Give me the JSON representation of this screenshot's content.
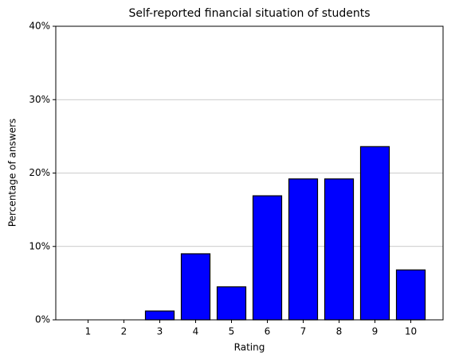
{
  "chart_data": {
    "type": "bar",
    "title": "Self-reported financial situation of students",
    "x_label": "Rating",
    "y_label": "Percentage of answers",
    "categories": [
      "1",
      "2",
      "3",
      "4",
      "5",
      "6",
      "7",
      "8",
      "9",
      "10"
    ],
    "values": [
      0,
      0,
      1.2,
      9.0,
      4.5,
      16.9,
      19.2,
      19.2,
      23.6,
      6.8
    ],
    "color": "#0000ff",
    "edge_color": "#000000",
    "ylim": [
      0,
      40
    ],
    "yticks": [
      {
        "value": 0,
        "label": "0%"
      },
      {
        "value": 10,
        "label": "10%"
      },
      {
        "value": 20,
        "label": "20%"
      },
      {
        "value": 30,
        "label": "30%"
      },
      {
        "value": 40,
        "label": "40%"
      }
    ],
    "grid": true
  }
}
